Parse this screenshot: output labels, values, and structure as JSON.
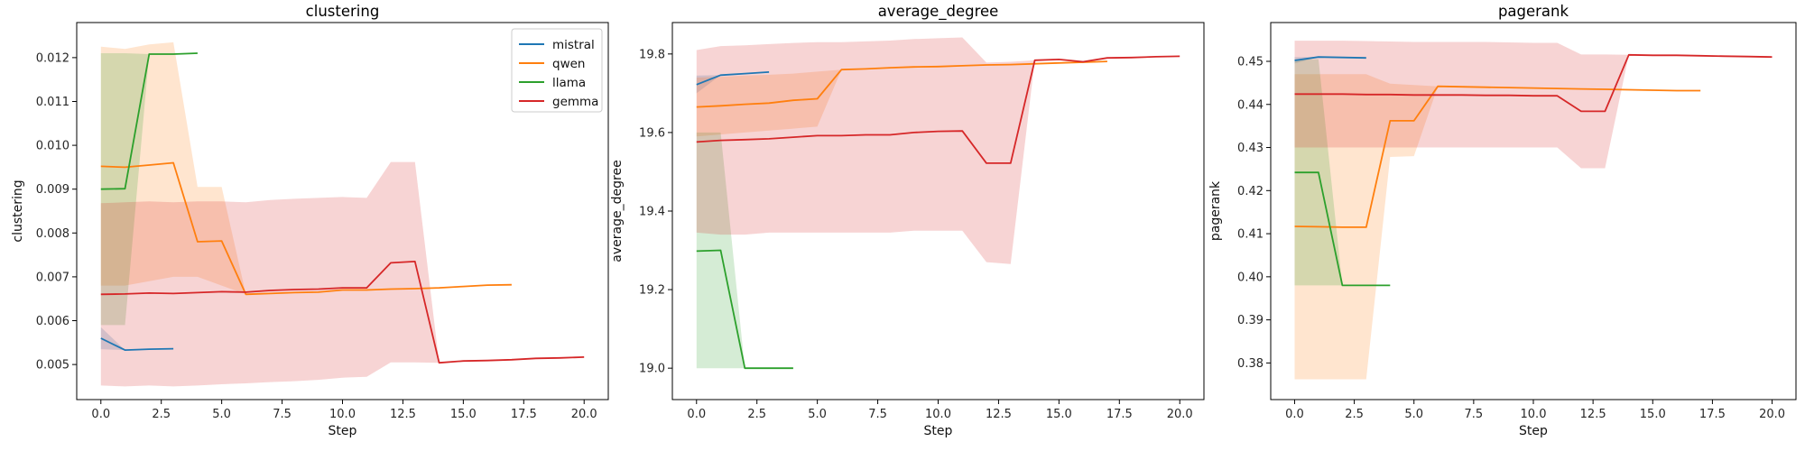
{
  "colors": {
    "mistral": "#1f77b4",
    "qwen": "#ff7f0e",
    "llama": "#2ca02c",
    "gemma": "#d62728"
  },
  "legend": {
    "placement": "top-right",
    "panel": 0,
    "entries": [
      "mistral",
      "qwen",
      "llama",
      "gemma"
    ]
  },
  "chart_data": [
    {
      "type": "line",
      "title": "clustering",
      "xlabel": "Step",
      "ylabel": "clustering",
      "xlim": [
        -1,
        21
      ],
      "ylim": [
        0.0042,
        0.0128
      ],
      "xticks": [
        0.0,
        2.5,
        5.0,
        7.5,
        10.0,
        12.5,
        15.0,
        17.5,
        20.0
      ],
      "xtick_labels": [
        "0.0",
        "2.5",
        "5.0",
        "7.5",
        "10.0",
        "12.5",
        "15.0",
        "17.5",
        "20.0"
      ],
      "yticks": [
        0.005,
        0.006,
        0.007,
        0.008,
        0.009,
        0.01,
        0.011,
        0.012
      ],
      "ytick_labels": [
        "0.005",
        "0.006",
        "0.007",
        "0.008",
        "0.009",
        "0.010",
        "0.011",
        "0.012"
      ],
      "series": [
        {
          "name": "mistral",
          "x": [
            0,
            1,
            2,
            3
          ],
          "y": [
            0.0056,
            0.00533,
            0.00535,
            0.00536
          ],
          "lower": [
            0.00535,
            0.00533,
            0.00535,
            0.00536
          ],
          "upper": [
            0.00585,
            0.00533,
            0.00535,
            0.00536
          ]
        },
        {
          "name": "qwen",
          "x": [
            0,
            1,
            2,
            3,
            4,
            5,
            6,
            7,
            8,
            9,
            10,
            11,
            12,
            13,
            14,
            15,
            16,
            17
          ],
          "y": [
            0.00952,
            0.0095,
            0.00955,
            0.0096,
            0.0078,
            0.00782,
            0.0066,
            0.00662,
            0.00664,
            0.00665,
            0.0067,
            0.0067,
            0.00672,
            0.00673,
            0.00675,
            0.00678,
            0.00681,
            0.00682
          ],
          "lower": [
            0.0068,
            0.0068,
            0.0069,
            0.007,
            0.007,
            0.0068,
            0.0066,
            0.00662,
            0.00664,
            0.00665,
            0.0067,
            0.0067,
            0.00672,
            0.00673,
            0.00675,
            0.00678,
            0.00681,
            0.00682
          ],
          "upper": [
            0.01225,
            0.0122,
            0.0123,
            0.01235,
            0.00905,
            0.00905,
            0.0066,
            0.00662,
            0.00664,
            0.00665,
            0.0067,
            0.0067,
            0.00672,
            0.00673,
            0.00675,
            0.00678,
            0.00681,
            0.00682
          ]
        },
        {
          "name": "llama",
          "x": [
            0,
            1,
            2,
            3,
            4
          ],
          "y": [
            0.009,
            0.00901,
            0.01208,
            0.01208,
            0.0121
          ],
          "lower": [
            0.0059,
            0.0059,
            0.01208,
            0.01208,
            0.0121
          ],
          "upper": [
            0.0121,
            0.0121,
            0.01208,
            0.01208,
            0.0121
          ]
        },
        {
          "name": "gemma",
          "x": [
            0,
            1,
            2,
            3,
            4,
            5,
            6,
            7,
            8,
            9,
            10,
            11,
            12,
            13,
            14,
            15,
            16,
            17,
            18,
            19,
            20
          ],
          "y": [
            0.0066,
            0.00661,
            0.00663,
            0.00662,
            0.00664,
            0.00666,
            0.00665,
            0.00669,
            0.00671,
            0.00672,
            0.00675,
            0.00675,
            0.00732,
            0.00735,
            0.00504,
            0.00508,
            0.00509,
            0.00511,
            0.00514,
            0.00515,
            0.00517
          ],
          "lower": [
            0.00452,
            0.0045,
            0.00452,
            0.0045,
            0.00452,
            0.00455,
            0.00457,
            0.0046,
            0.00462,
            0.00465,
            0.0047,
            0.00472,
            0.00505,
            0.00505,
            0.00504,
            0.00508,
            0.00509,
            0.00511,
            0.00514,
            0.00515,
            0.00517
          ],
          "upper": [
            0.00868,
            0.0087,
            0.00872,
            0.0087,
            0.00872,
            0.00872,
            0.0087,
            0.00875,
            0.00878,
            0.0088,
            0.00882,
            0.0088,
            0.00962,
            0.00962,
            0.00504,
            0.00508,
            0.00509,
            0.00511,
            0.00514,
            0.00515,
            0.00517
          ]
        }
      ]
    },
    {
      "type": "line",
      "title": "average_degree",
      "xlabel": "Step",
      "ylabel": "average_degree",
      "xlim": [
        -1,
        21
      ],
      "ylim": [
        18.92,
        19.88
      ],
      "xticks": [
        0.0,
        2.5,
        5.0,
        7.5,
        10.0,
        12.5,
        15.0,
        17.5,
        20.0
      ],
      "xtick_labels": [
        "0.0",
        "2.5",
        "5.0",
        "7.5",
        "10.0",
        "12.5",
        "15.0",
        "17.5",
        "20.0"
      ],
      "yticks": [
        19.0,
        19.2,
        19.4,
        19.6,
        19.8
      ],
      "ytick_labels": [
        "19.0",
        "19.2",
        "19.4",
        "19.6",
        "19.8"
      ],
      "series": [
        {
          "name": "mistral",
          "x": [
            0,
            1,
            2,
            3
          ],
          "y": [
            19.722,
            19.746,
            19.75,
            19.754
          ],
          "lower": [
            19.7,
            19.746,
            19.75,
            19.754
          ],
          "upper": [
            19.745,
            19.746,
            19.75,
            19.754
          ]
        },
        {
          "name": "qwen",
          "x": [
            0,
            1,
            2,
            3,
            4,
            5,
            6,
            7,
            8,
            9,
            10,
            11,
            12,
            13,
            14,
            15,
            16,
            17
          ],
          "y": [
            19.665,
            19.668,
            19.672,
            19.675,
            19.682,
            19.686,
            19.76,
            19.762,
            19.765,
            19.767,
            19.768,
            19.77,
            19.772,
            19.773,
            19.775,
            19.777,
            19.779,
            19.781
          ],
          "lower": [
            19.59,
            19.595,
            19.6,
            19.605,
            19.61,
            19.615,
            19.76,
            19.762,
            19.765,
            19.767,
            19.768,
            19.77,
            19.772,
            19.773,
            19.775,
            19.777,
            19.779,
            19.781
          ],
          "upper": [
            19.74,
            19.742,
            19.745,
            19.747,
            19.75,
            19.755,
            19.76,
            19.762,
            19.765,
            19.767,
            19.768,
            19.77,
            19.772,
            19.773,
            19.775,
            19.777,
            19.779,
            19.781
          ]
        },
        {
          "name": "llama",
          "x": [
            0,
            1,
            2,
            3,
            4
          ],
          "y": [
            19.298,
            19.3,
            19.0,
            19.0,
            19.0
          ],
          "lower": [
            19.0,
            19.0,
            19.0,
            19.0,
            19.0
          ],
          "upper": [
            19.6,
            19.6,
            19.0,
            19.0,
            19.0
          ]
        },
        {
          "name": "gemma",
          "x": [
            0,
            1,
            2,
            3,
            4,
            5,
            6,
            7,
            8,
            9,
            10,
            11,
            12,
            13,
            14,
            15,
            16,
            17,
            18,
            19,
            20
          ],
          "y": [
            19.576,
            19.58,
            19.582,
            19.584,
            19.588,
            19.592,
            19.592,
            19.594,
            19.594,
            19.6,
            19.603,
            19.604,
            19.522,
            19.522,
            19.784,
            19.786,
            19.78,
            19.79,
            19.791,
            19.793,
            19.794
          ],
          "lower": [
            19.345,
            19.34,
            19.34,
            19.345,
            19.345,
            19.345,
            19.345,
            19.345,
            19.345,
            19.35,
            19.35,
            19.35,
            19.27,
            19.265,
            19.784,
            19.786,
            19.78,
            19.79,
            19.791,
            19.793,
            19.794
          ],
          "upper": [
            19.81,
            19.82,
            19.822,
            19.825,
            19.828,
            19.83,
            19.83,
            19.832,
            19.834,
            19.838,
            19.84,
            19.842,
            19.778,
            19.78,
            19.784,
            19.786,
            19.78,
            19.79,
            19.791,
            19.793,
            19.794
          ]
        }
      ]
    },
    {
      "type": "line",
      "title": "pagerank",
      "xlabel": "Step",
      "ylabel": "pagerank",
      "xlim": [
        -1,
        21
      ],
      "ylim": [
        0.3715,
        0.459
      ],
      "xticks": [
        0.0,
        2.5,
        5.0,
        7.5,
        10.0,
        12.5,
        15.0,
        17.5,
        20.0
      ],
      "xtick_labels": [
        "0.0",
        "2.5",
        "5.0",
        "7.5",
        "10.0",
        "12.5",
        "15.0",
        "17.5",
        "20.0"
      ],
      "yticks": [
        0.38,
        0.39,
        0.4,
        0.41,
        0.42,
        0.43,
        0.44,
        0.45
      ],
      "ytick_labels": [
        "0.38",
        "0.39",
        "0.40",
        "0.41",
        "0.42",
        "0.43",
        "0.44",
        "0.45"
      ],
      "series": [
        {
          "name": "mistral",
          "x": [
            0,
            1,
            2,
            3
          ],
          "y": [
            0.4502,
            0.451,
            0.4509,
            0.4508
          ],
          "lower": [
            0.4495,
            0.451,
            0.4509,
            0.4508
          ],
          "upper": [
            0.451,
            0.451,
            0.4509,
            0.4508
          ]
        },
        {
          "name": "qwen",
          "x": [
            0,
            1,
            2,
            3,
            4,
            5,
            6,
            7,
            8,
            9,
            10,
            11,
            12,
            13,
            14,
            15,
            16,
            17
          ],
          "y": [
            0.4117,
            0.4116,
            0.4115,
            0.4115,
            0.4362,
            0.4362,
            0.4442,
            0.4441,
            0.444,
            0.4439,
            0.4438,
            0.4437,
            0.4436,
            0.4435,
            0.4434,
            0.4433,
            0.4432,
            0.4432
          ],
          "lower": [
            0.3762,
            0.3762,
            0.3762,
            0.3762,
            0.4278,
            0.428,
            0.4442,
            0.4441,
            0.444,
            0.4439,
            0.4438,
            0.4437,
            0.4436,
            0.4435,
            0.4434,
            0.4433,
            0.4432,
            0.4432
          ],
          "upper": [
            0.447,
            0.447,
            0.447,
            0.447,
            0.4448,
            0.4445,
            0.4442,
            0.4441,
            0.444,
            0.4439,
            0.4438,
            0.4437,
            0.4436,
            0.4435,
            0.4434,
            0.4433,
            0.4432,
            0.4432
          ]
        },
        {
          "name": "llama",
          "x": [
            0,
            1,
            2,
            3,
            4
          ],
          "y": [
            0.4242,
            0.4242,
            0.398,
            0.398,
            0.398
          ],
          "lower": [
            0.398,
            0.398,
            0.398,
            0.398,
            0.398
          ],
          "upper": [
            0.4505,
            0.4505,
            0.398,
            0.398,
            0.398
          ]
        },
        {
          "name": "gemma",
          "x": [
            0,
            1,
            2,
            3,
            4,
            5,
            6,
            7,
            8,
            9,
            10,
            11,
            12,
            13,
            14,
            15,
            16,
            17,
            18,
            19,
            20
          ],
          "y": [
            0.4424,
            0.4424,
            0.4424,
            0.4423,
            0.4423,
            0.4422,
            0.4422,
            0.4422,
            0.4421,
            0.4421,
            0.442,
            0.442,
            0.4384,
            0.4384,
            0.4515,
            0.4514,
            0.4514,
            0.4513,
            0.4512,
            0.4511,
            0.451
          ],
          "lower": [
            0.43,
            0.43,
            0.43,
            0.43,
            0.43,
            0.43,
            0.43,
            0.43,
            0.43,
            0.43,
            0.43,
            0.43,
            0.4252,
            0.4252,
            0.4515,
            0.4514,
            0.4514,
            0.4513,
            0.4512,
            0.4511,
            0.451
          ],
          "upper": [
            0.4548,
            0.4548,
            0.4548,
            0.4547,
            0.4546,
            0.4545,
            0.4545,
            0.4545,
            0.4545,
            0.4544,
            0.4543,
            0.4543,
            0.4516,
            0.4516,
            0.4515,
            0.4514,
            0.4514,
            0.4513,
            0.4512,
            0.4511,
            0.451
          ]
        }
      ]
    }
  ]
}
